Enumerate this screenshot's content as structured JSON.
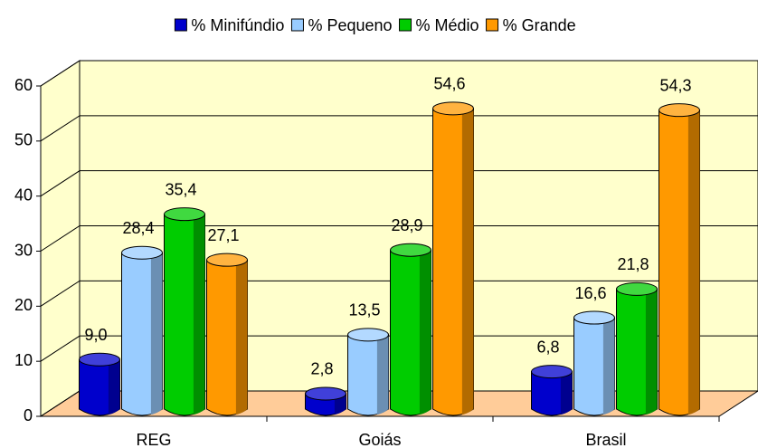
{
  "chart_data": {
    "type": "bar",
    "categories": [
      "REG",
      "Goiás",
      "Brasil"
    ],
    "series": [
      {
        "name": "% Minifúndio",
        "color": "#0000cc",
        "values": [
          9.0,
          2.8,
          6.8
        ],
        "value_labels": [
          "9,0",
          "2,8",
          "6,8"
        ]
      },
      {
        "name": "% Pequeno",
        "color": "#99ccff",
        "values": [
          28.4,
          13.5,
          16.6
        ],
        "value_labels": [
          "28,4",
          "13,5",
          "16,6"
        ]
      },
      {
        "name": "% Médio",
        "color": "#00cc00",
        "values": [
          35.4,
          28.9,
          21.8
        ],
        "value_labels": [
          "35,4",
          "28,9",
          "21,8"
        ]
      },
      {
        "name": "% Grande",
        "color": "#ff9900",
        "values": [
          27.1,
          54.6,
          54.3
        ],
        "value_labels": [
          "27,1",
          "54,6",
          "54,3"
        ]
      }
    ],
    "ylim": [
      0,
      60
    ],
    "yticks": [
      0,
      10,
      20,
      30,
      40,
      50,
      60
    ],
    "grid": true,
    "legend": "top"
  }
}
